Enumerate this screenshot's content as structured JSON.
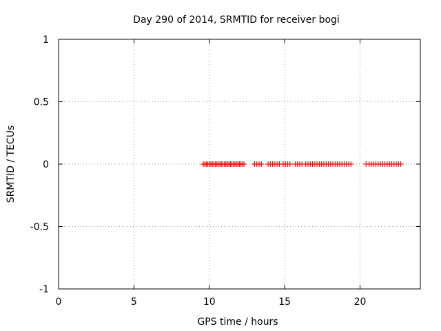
{
  "chart_data": {
    "type": "scatter",
    "title": "Day 290 of 2014, SRMTID for receiver bogi",
    "xlabel": "GPS time / hours",
    "ylabel": "SRMTID / TECUs",
    "xlim": [
      0,
      24
    ],
    "ylim": [
      -1,
      1
    ],
    "xticks": [
      0,
      5,
      10,
      15,
      20
    ],
    "xtick_labels": [
      "0",
      "5",
      "10",
      "15",
      "20"
    ],
    "yticks": [
      -1,
      -0.5,
      0,
      0.5,
      1
    ],
    "ytick_labels": [
      "-1",
      "-0.5",
      "0",
      "0.5",
      "1"
    ],
    "grid": true,
    "series": [
      {
        "name": "SRMTID",
        "color": "#ff0000",
        "marker": "plus",
        "x": [
          9.6,
          9.7,
          9.8,
          9.9,
          10.0,
          10.1,
          10.2,
          10.3,
          10.4,
          10.5,
          10.6,
          10.7,
          10.8,
          10.9,
          11.0,
          11.1,
          11.2,
          11.3,
          11.4,
          11.5,
          11.6,
          11.7,
          11.8,
          11.9,
          12.0,
          12.1,
          12.2,
          12.3,
          13.0,
          13.15,
          13.3,
          13.45,
          13.9,
          14.05,
          14.2,
          14.35,
          14.5,
          14.65,
          14.9,
          15.05,
          15.2,
          15.35,
          15.7,
          15.85,
          16.0,
          16.15,
          16.4,
          16.55,
          16.7,
          16.85,
          17.0,
          17.15,
          17.3,
          17.45,
          17.6,
          17.75,
          17.9,
          18.05,
          18.2,
          18.35,
          18.5,
          18.65,
          18.8,
          18.95,
          19.1,
          19.25,
          19.4,
          20.4,
          20.6,
          20.75,
          20.9,
          21.05,
          21.2,
          21.35,
          21.5,
          21.65,
          21.8,
          21.95,
          22.1,
          22.25,
          22.4,
          22.55,
          22.7
        ],
        "y": [
          0,
          0,
          0,
          0,
          0,
          0,
          0,
          0,
          0,
          0,
          0,
          0,
          0,
          0,
          0,
          0,
          0,
          0,
          0,
          0,
          0,
          0,
          0,
          0,
          0,
          0,
          0,
          0,
          0,
          0,
          0,
          0,
          0,
          0,
          0,
          0,
          0,
          0,
          0,
          0,
          0,
          0,
          0,
          0,
          0,
          0,
          0,
          0,
          0,
          0,
          0,
          0,
          0,
          0,
          0,
          0,
          0,
          0,
          0,
          0,
          0,
          0,
          0,
          0,
          0,
          0,
          0,
          0,
          0,
          0,
          0,
          0,
          0,
          0,
          0,
          0,
          0,
          0,
          0,
          0,
          0,
          0,
          0
        ]
      }
    ]
  }
}
